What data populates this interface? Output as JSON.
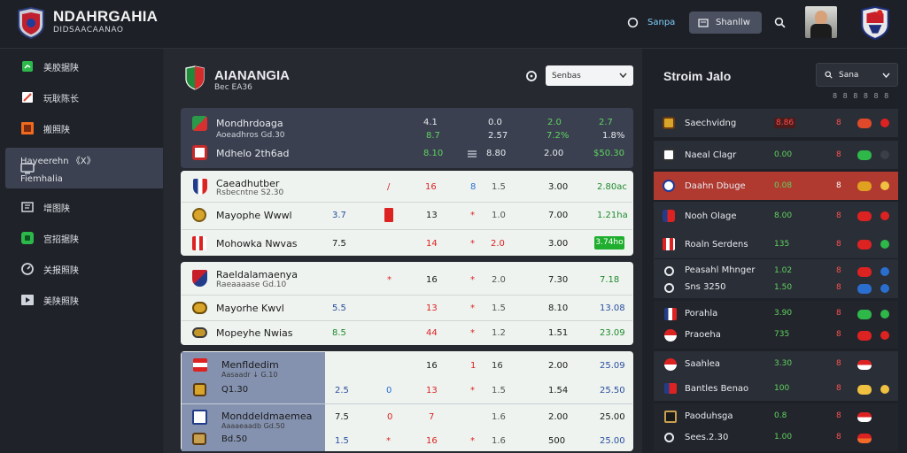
{
  "header": {
    "brand": "NDAHRGAHIA",
    "brand_sub": "DIDSAACAANAO",
    "nav_label": "Sanpa",
    "button_label": "Shanllw"
  },
  "sidebar": {
    "items": [
      {
        "label": "美胶据陕",
        "icon": "chart-icon",
        "color": "#2db84b"
      },
      {
        "label": "玩耿陈长",
        "icon": "edit-icon",
        "color": "#e24a3a"
      },
      {
        "label": "搬照陕",
        "icon": "grid-icon",
        "color": "#ef6a1f"
      },
      {
        "label": "Hayeerehn 《X》",
        "label2": "Fiemhalia",
        "icon": "monitor-icon",
        "color": "#cfd4dc",
        "active": true
      },
      {
        "label": "增图陕",
        "icon": "book-icon",
        "color": "#cfd4dc"
      },
      {
        "label": "宫招据陕",
        "icon": "shop-icon",
        "color": "#2db84b"
      },
      {
        "label": "关报照陕",
        "icon": "timer-icon",
        "color": "#cfd4dc"
      },
      {
        "label": "美陕照陕",
        "icon": "play-icon",
        "color": "#cfd4dc"
      }
    ]
  },
  "main": {
    "title": "AIANANGIA",
    "subtitle": "Bec EA36",
    "select_value": "Senbas"
  },
  "dark_card": [
    {
      "team": "Mondhrdoaga",
      "sub": "Aoeadhros Gd.30",
      "c1": "4.1",
      "c2": "0.0",
      "c3": "2.0",
      "c4": "2.7"
    },
    {
      "team": "",
      "sub": "",
      "c1": "8.7",
      "c2": "2.57",
      "c3": "7.2%",
      "c4": "1.8%"
    },
    {
      "team": "Mdhelo 2th6ad",
      "sub": "",
      "c0": "8.10",
      "c2": "8.80",
      "c3": "2.00",
      "c4": "$50.30"
    }
  ],
  "card2": [
    {
      "team": "Caeadhutber",
      "sub": "Rsbecntne S2.30",
      "a": "/",
      "b": "16",
      "c": "8",
      "d": "1.5",
      "e": "3.00",
      "f": "2.80ac"
    },
    {
      "team": "Mayophe Wwwl",
      "a0": "3.7",
      "a": "▐",
      "b": "13",
      "c": "*",
      "d": "1.0",
      "e": "7.00",
      "f": "1.21ha"
    },
    {
      "team": "Mohowka Nwvas",
      "a0": "7.5",
      "b": "14",
      "c": "*",
      "d": "2.0",
      "e": "3.00",
      "f": "3.74ho"
    }
  ],
  "card3": [
    {
      "team": "Raeldalamaenya",
      "sub": "Raeaaaase Gd.10",
      "a": "*",
      "b": "16",
      "c": "*",
      "d": "2.0",
      "e": "7.30",
      "f": "7.18"
    },
    {
      "team": "Mayorhe Kwvl",
      "a0": "5.5",
      "b": "13",
      "c": "*",
      "d": "1.5",
      "e": "8.10",
      "f": "13.08"
    },
    {
      "team": "Mopeyhe Nwias",
      "a0": "8.5",
      "b": "44",
      "c": "*",
      "d": "1.2",
      "e": "1.51",
      "f": "23.09"
    }
  ],
  "card4": [
    {
      "team": "Menfldedim",
      "sub": "Aasaadr ↓ G.10",
      "b": "16",
      "c": "1",
      "d": "16",
      "e": "2.00",
      "f": "25.09"
    },
    {
      "team": "Q1.30",
      "a0": "2.5",
      "a": "0",
      "b": "13",
      "c": "*",
      "d": "1.5",
      "e": "1.54",
      "f": "25.50"
    },
    {
      "team": "Monddeldmaemea",
      "sub": "Aaaaeaadb Gd.50",
      "a0": "7.5",
      "a": "0",
      "b": "16",
      "c": "7",
      "d": "1.6",
      "e": "2.00",
      "f": "25.00"
    },
    {
      "team": "Bd.50",
      "a0": "1.5",
      "a": "*",
      "b": "16",
      "c": "*",
      "d": "1.6",
      "e": "500",
      "f": "25.00"
    }
  ],
  "right": {
    "title": "Stroim Jalo",
    "select_value": "Sana",
    "rows": [
      {
        "team": "Saechvidng",
        "score": "8.86",
        "n": "8"
      },
      {
        "team": "Naeal Clagr",
        "score": "0.00",
        "n": "8"
      },
      {
        "team": "Daahn Dbuge",
        "score": "0.08",
        "n": "8"
      },
      {
        "team": "Nooh Olage",
        "score": "8.00",
        "n": "8"
      },
      {
        "team": "Roaln Serdens",
        "score": "135",
        "n": "8"
      },
      {
        "team": "Peasahl Mhnger",
        "score": "1.02",
        "n": "8"
      },
      {
        "team": "Sns 3250",
        "score": "1.50",
        "n": "8"
      },
      {
        "team": "Porahla",
        "score": "3.90",
        "n": "8"
      },
      {
        "team": "Praoeha",
        "score": "735",
        "n": "8"
      },
      {
        "team": "Saahlea",
        "score": "3.30",
        "n": "8"
      },
      {
        "team": "Bantles Benao",
        "score": "100",
        "n": "8"
      },
      {
        "team": "Paoduhsga",
        "score": "0.8",
        "n": "8"
      },
      {
        "team": "Sees.2.30",
        "score": "1.00",
        "n": "8"
      }
    ]
  }
}
